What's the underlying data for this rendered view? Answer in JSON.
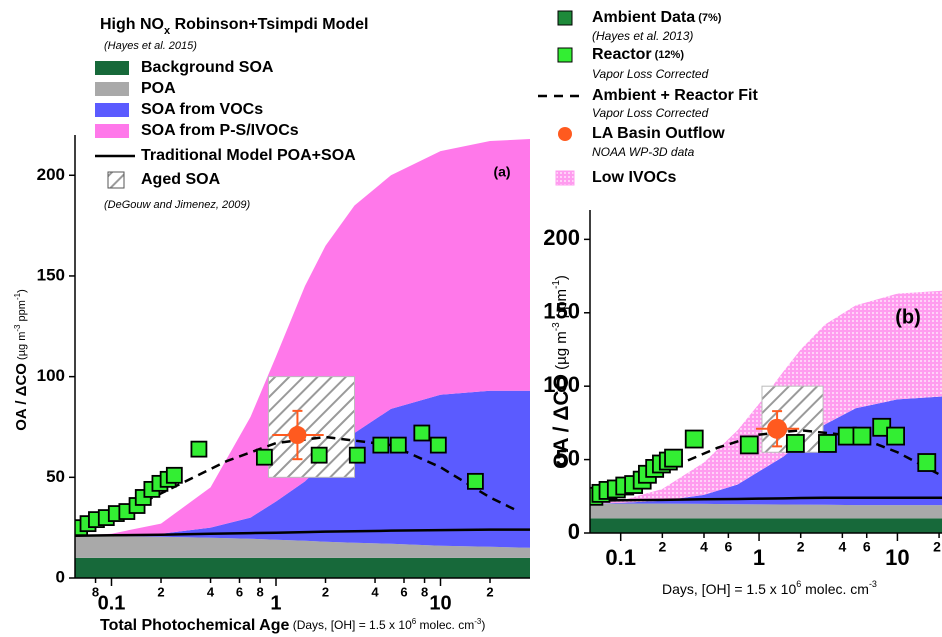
{
  "chart_data": [
    {
      "type": "area",
      "title": [
        "High NO",
        "x",
        " Robinson+Tsimpdi Model"
      ],
      "subtitle": "(Hayes et al. 2015)",
      "annotation": "(a)",
      "x_label": [
        "Total Photochemical Age",
        " (Days, [OH] = 1.5 x 10",
        "6",
        " molec. cm",
        "-3",
        ")"
      ],
      "y_label": [
        "OA / ΔCO",
        " (µg m",
        "-3",
        " ppm",
        "-1",
        ")"
      ],
      "x_scale": "log",
      "xlim": [
        0.06,
        35
      ],
      "ylim": [
        0,
        220
      ],
      "xticks": [
        {
          "value": 0.08,
          "label": "8"
        },
        0.1,
        {
          "value": 0.2,
          "label": "2"
        },
        {
          "value": 0.4,
          "label": "4"
        },
        {
          "value": 0.6,
          "label": "6"
        },
        {
          "value": 0.8,
          "label": "8"
        },
        1,
        2,
        4,
        6,
        8,
        10,
        {
          "value": 20,
          "label": "2"
        }
      ],
      "yticks": [
        0,
        50,
        100,
        150,
        200
      ],
      "x": [
        0.06,
        0.1,
        0.2,
        0.4,
        0.7,
        1,
        1.5,
        2,
        3,
        5,
        10,
        20,
        35
      ],
      "series": [
        {
          "name": "Background SOA",
          "color": "#17693a",
          "kind": "area",
          "values": [
            10,
            10,
            10,
            10,
            10,
            10,
            10,
            10,
            10,
            10,
            10,
            10,
            10
          ]
        },
        {
          "name": "POA",
          "color": "#a9a9a9",
          "kind": "area",
          "values": [
            11,
            10.8,
            10.5,
            10,
            9.5,
            9,
            8.5,
            8,
            7.5,
            7,
            6,
            5.5,
            5
          ]
        },
        {
          "name": "SOA from VOCs",
          "color": "#5b5bff",
          "kind": "area",
          "values": [
            0,
            0.2,
            1.5,
            5,
            10.5,
            19,
            29.5,
            40,
            54.5,
            67,
            75,
            77.5,
            78
          ]
        },
        {
          "name": "SOA from P-S/IVOCs",
          "color": "#ff78ea",
          "kind": "area",
          "values": [
            0,
            1,
            5,
            20,
            50,
            72,
            97,
            107,
            113,
            116,
            121,
            124,
            125
          ]
        },
        {
          "name": "Traditional Model POA+SOA",
          "color": "#000000",
          "kind": "line",
          "values": [
            21,
            21.2,
            21.5,
            22,
            22.3,
            22.5,
            22.8,
            23,
            23.2,
            23.5,
            23.8,
            24,
            24
          ]
        }
      ],
      "aged_soa": {
        "name": "Aged SOA",
        "note": "(DeGouw and Jimenez, 2009)",
        "x": [
          0.9,
          3
        ],
        "y": [
          50,
          100
        ]
      },
      "points": {
        "color": "#33ee33",
        "x": [
          0.064,
          0.072,
          0.081,
          0.093,
          0.107,
          0.124,
          0.143,
          0.156,
          0.176,
          0.197,
          0.221,
          0.241,
          0.34,
          0.85,
          1.83,
          3.12,
          4.34,
          5.54,
          7.7,
          9.7,
          16.3
        ],
        "values": [
          25,
          27,
          29,
          30,
          32,
          33,
          36,
          40,
          44,
          47,
          49,
          51,
          64,
          60,
          61,
          61,
          66,
          66,
          72,
          66,
          48
        ]
      },
      "fit": {
        "x": [
          0.06,
          0.1,
          0.2,
          0.5,
          1,
          2,
          5,
          10,
          20,
          30
        ],
        "values": [
          24,
          30,
          42,
          58,
          67,
          70,
          66,
          55,
          40,
          33
        ]
      },
      "outflow": {
        "color": "#ff5a1f",
        "x": 1.35,
        "y": 71,
        "y_error": 12,
        "x_range": [
          0.95,
          1.95
        ]
      }
    },
    {
      "type": "area",
      "annotation": "(b)",
      "x_label": [
        "Days, [OH] = 1.5 x 10",
        "6",
        " molec. cm",
        "-3"
      ],
      "y_label": [
        "OA / ΔCO",
        " (µg m",
        "-3",
        " ppm",
        "-1",
        ")"
      ],
      "x_scale": "log",
      "xlim": [
        0.06,
        21
      ],
      "ylim": [
        0,
        220
      ],
      "xticks": [
        0.1,
        {
          "value": 0.2,
          "label": "2"
        },
        {
          "value": 0.4,
          "label": "4"
        },
        {
          "value": 0.6,
          "label": "6"
        },
        1,
        2,
        4,
        6,
        10,
        {
          "value": 20,
          "label": "2"
        }
      ],
      "yticks": [
        0,
        50,
        100,
        150,
        200
      ],
      "x": [
        0.06,
        0.1,
        0.2,
        0.4,
        0.7,
        1,
        1.5,
        2,
        3,
        5,
        10,
        21
      ],
      "series": [
        {
          "color": "#17693a",
          "kind": "area",
          "values": [
            10,
            10,
            10,
            10,
            10,
            10,
            10,
            10,
            10,
            10,
            10,
            10
          ]
        },
        {
          "color": "#a9a9a9",
          "kind": "area",
          "values": [
            10,
            10,
            10,
            9.8,
            9.6,
            9.5,
            9.4,
            9.3,
            9.2,
            9,
            9,
            9
          ]
        },
        {
          "color": "#5b5bff",
          "kind": "area",
          "values": [
            0,
            0.5,
            2,
            6.2,
            13.4,
            22.5,
            32.6,
            42.7,
            54.8,
            66,
            72,
            74
          ]
        },
        {
          "name": "Low IVOCs",
          "color": "#ff9cef",
          "kind": "area",
          "pattern": "dots",
          "values": [
            0,
            1.5,
            8,
            22,
            37,
            46,
            58,
            63,
            68,
            70,
            72,
            72
          ]
        },
        {
          "color": "#000000",
          "kind": "line",
          "values": [
            22,
            22.3,
            22.6,
            23,
            23.2,
            23.4,
            23.6,
            23.8,
            24,
            24,
            24,
            24
          ]
        }
      ],
      "ambient": {
        "name": "Ambient Data",
        "tag": "(7%)",
        "note": "(Hayes et al. 2013)",
        "color": "#1e8a3a"
      },
      "aged_soa": {
        "x": [
          1.05,
          2.9
        ],
        "y": [
          55,
          100
        ]
      },
      "points": {
        "name": "Reactor",
        "tag": "(12%)",
        "note": "Vapor Loss Corrected",
        "color": "#33ee33",
        "x": [
          0.064,
          0.072,
          0.081,
          0.093,
          0.107,
          0.124,
          0.143,
          0.156,
          0.176,
          0.197,
          0.221,
          0.241,
          0.34,
          0.85,
          1.83,
          3.12,
          4.34,
          5.54,
          7.7,
          9.7,
          16.3
        ],
        "values": [
          25,
          27,
          29,
          30,
          32,
          33,
          36,
          40,
          44,
          47,
          49,
          51,
          64,
          60,
          61,
          61,
          66,
          66,
          72,
          66,
          48
        ]
      },
      "fit": {
        "name": "Ambient + Reactor Fit",
        "note": "Vapor Loss Corrected",
        "x": [
          0.06,
          0.1,
          0.2,
          0.5,
          1,
          2,
          5,
          10,
          20
        ],
        "values": [
          24,
          30,
          42,
          58,
          67,
          70,
          66,
          55,
          40
        ]
      },
      "outflow": {
        "name": "LA Basin Outflow",
        "note": "NOAA WP-3D data",
        "color": "#ff5a1f",
        "x": 1.35,
        "y": 71,
        "y_error": 12,
        "x_range": [
          0.95,
          1.95
        ]
      }
    }
  ]
}
